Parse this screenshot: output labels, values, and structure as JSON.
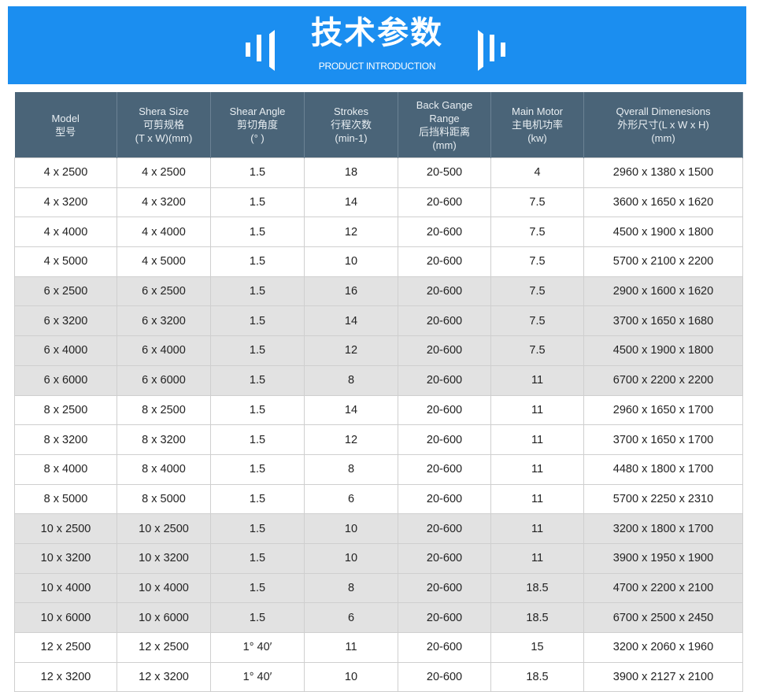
{
  "banner": {
    "title": "技术参数",
    "subtitle": "PRODUCT INTRODUCTION",
    "color": "#1b8ef0"
  },
  "table": {
    "header_color": "#4a6478",
    "columns": [
      [
        "Model",
        "型号"
      ],
      [
        "Shera Size",
        "可剪规格",
        "(T x W)(mm)"
      ],
      [
        "Shear Angle",
        "剪切角度",
        "(° )"
      ],
      [
        "Strokes",
        "行程次数",
        "(min-1)"
      ],
      [
        "Back Gange",
        "Range",
        "后挡料距离",
        "(mm)"
      ],
      [
        "Main Motor",
        "主电机功率",
        "(kw)"
      ],
      [
        "Qverall Dimenesions",
        "外形尺寸(L x W x H)",
        "(mm)"
      ]
    ],
    "rows": [
      {
        "shaded": false,
        "cells": [
          "4 x 2500",
          "4 x 2500",
          "1.5",
          "18",
          "20-500",
          "4",
          "2960 x 1380 x 1500"
        ]
      },
      {
        "shaded": false,
        "cells": [
          "4 x 3200",
          "4 x 3200",
          "1.5",
          "14",
          "20-600",
          "7.5",
          "3600 x 1650 x 1620"
        ]
      },
      {
        "shaded": false,
        "cells": [
          "4 x 4000",
          "4 x 4000",
          "1.5",
          "12",
          "20-600",
          "7.5",
          "4500 x 1900 x 1800"
        ]
      },
      {
        "shaded": false,
        "cells": [
          "4 x 5000",
          "4 x 5000",
          "1.5",
          "10",
          "20-600",
          "7.5",
          "5700 x 2100 x 2200"
        ]
      },
      {
        "shaded": true,
        "cells": [
          "6 x 2500",
          "6 x 2500",
          "1.5",
          "16",
          "20-600",
          "7.5",
          "2900 x 1600 x 1620"
        ]
      },
      {
        "shaded": true,
        "cells": [
          "6 x 3200",
          "6 x 3200",
          "1.5",
          "14",
          "20-600",
          "7.5",
          "3700 x 1650 x 1680"
        ]
      },
      {
        "shaded": true,
        "cells": [
          "6 x 4000",
          "6 x 4000",
          "1.5",
          "12",
          "20-600",
          "7.5",
          "4500 x 1900 x 1800"
        ]
      },
      {
        "shaded": true,
        "cells": [
          "6 x 6000",
          "6 x 6000",
          "1.5",
          "8",
          "20-600",
          "11",
          "6700 x 2200 x 2200"
        ]
      },
      {
        "shaded": false,
        "cells": [
          "8 x 2500",
          "8 x 2500",
          "1.5",
          "14",
          "20-600",
          "11",
          "2960 x 1650 x 1700"
        ]
      },
      {
        "shaded": false,
        "cells": [
          "8 x 3200",
          "8 x 3200",
          "1.5",
          "12",
          "20-600",
          "11",
          "3700 x 1650 x 1700"
        ]
      },
      {
        "shaded": false,
        "cells": [
          "8 x 4000",
          "8 x 4000",
          "1.5",
          "8",
          "20-600",
          "11",
          "4480 x 1800 x 1700"
        ]
      },
      {
        "shaded": false,
        "cells": [
          "8 x 5000",
          "8 x 5000",
          "1.5",
          "6",
          "20-600",
          "11",
          "5700 x 2250 x 2310"
        ]
      },
      {
        "shaded": true,
        "cells": [
          "10 x 2500",
          "10 x 2500",
          "1.5",
          "10",
          "20-600",
          "11",
          "3200 x 1800 x 1700"
        ]
      },
      {
        "shaded": true,
        "cells": [
          "10 x 3200",
          "10 x 3200",
          "1.5",
          "10",
          "20-600",
          "11",
          "3900 x 1950 x 1900"
        ]
      },
      {
        "shaded": true,
        "cells": [
          "10 x 4000",
          "10 x 4000",
          "1.5",
          "8",
          "20-600",
          "18.5",
          "4700 x 2200 x 2100"
        ]
      },
      {
        "shaded": true,
        "cells": [
          "10 x 6000",
          "10 x 6000",
          "1.5",
          "6",
          "20-600",
          "18.5",
          "6700 x 2500 x 2450"
        ]
      },
      {
        "shaded": false,
        "cells": [
          "12 x 2500",
          "12 x 2500",
          "1° 40′",
          "11",
          "20-600",
          "15",
          "3200 x 2060 x 1960"
        ]
      },
      {
        "shaded": false,
        "cells": [
          "12 x 3200",
          "12 x 3200",
          "1° 40′",
          "10",
          "20-600",
          "18.5",
          "3900 x 2127 x 2100"
        ]
      }
    ]
  }
}
